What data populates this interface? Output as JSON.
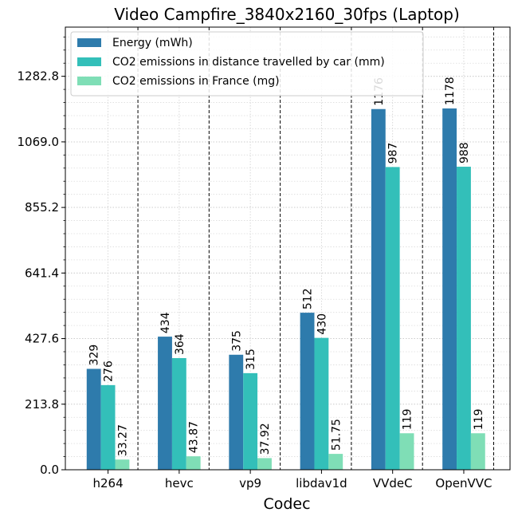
{
  "chart_data": {
    "type": "bar",
    "title": "Video Campfire_3840x2160_30fps (Laptop)",
    "xlabel": "Codec",
    "ylabel": "",
    "categories": [
      "h264",
      "hevc",
      "vp9",
      "libdav1d",
      "VVdeC",
      "OpenVVC"
    ],
    "series": [
      {
        "name": "Energy (mWh)",
        "color": "#2e7bac",
        "values": [
          329,
          434,
          375,
          512,
          1176,
          1178
        ],
        "labels": [
          "329",
          "434",
          "375",
          "512",
          "1176",
          "1178"
        ]
      },
      {
        "name": "CO2 emissions in distance travelled by car (mm)",
        "color": "#33bfb9",
        "values": [
          276,
          364,
          315,
          430,
          987,
          988
        ],
        "labels": [
          "276",
          "364",
          "315",
          "430",
          "987",
          "988"
        ]
      },
      {
        "name": "CO2 emissions in France (mg)",
        "color": "#7fdeb6",
        "values": [
          33.27,
          43.87,
          37.92,
          51.75,
          119,
          119
        ],
        "labels": [
          "33.27",
          "43.87",
          "37.92",
          "51.75",
          "119",
          "119"
        ]
      }
    ],
    "ylim": [
      0,
      1443.15
    ],
    "yticks": [
      0.0,
      213.8,
      427.6,
      641.4,
      855.2,
      1069.0,
      1282.8
    ],
    "ytick_labels": [
      "0.0",
      "213.8",
      "427.6",
      "641.4",
      "855.2",
      "1069.0",
      "1282.8"
    ],
    "grid": true,
    "legend_position": "top-left"
  }
}
